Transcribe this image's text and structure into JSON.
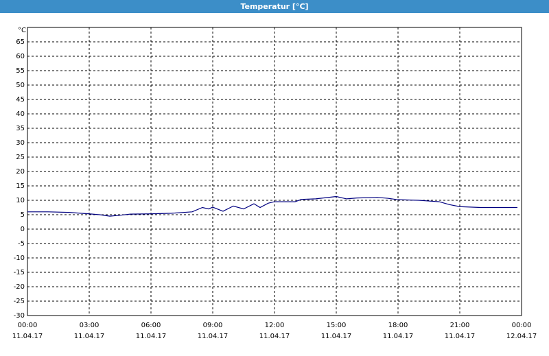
{
  "chart_data": {
    "type": "line",
    "title": "Temperatur [°C]",
    "y_unit": "°C",
    "x": [
      0,
      1,
      2,
      3,
      3.5,
      4,
      4.5,
      5,
      6,
      7,
      8,
      8.5,
      8.8,
      9,
      9.5,
      10,
      10.5,
      11,
      11.3,
      11.7,
      12,
      13,
      13.3,
      14,
      15,
      15.5,
      16,
      17,
      17.5,
      18,
      19,
      20,
      20.5,
      21,
      22,
      23,
      23.8
    ],
    "series": [
      {
        "name": "Temperatur",
        "color": "#000080",
        "values": [
          6,
          6,
          5.8,
          5.3,
          5,
          4.5,
          4.8,
          5.2,
          5.3,
          5.5,
          6,
          7.5,
          7,
          7.6,
          6.2,
          8,
          7,
          8.8,
          7.5,
          9,
          9.5,
          9.5,
          10.3,
          10.5,
          11.3,
          10.5,
          10.8,
          11,
          10.7,
          10.2,
          10,
          9.5,
          8.5,
          7.8,
          7.5,
          7.5,
          7.5
        ]
      }
    ],
    "xlim": [
      0,
      24
    ],
    "xticks": [
      {
        "value": 0,
        "label": "00:00"
      },
      {
        "value": 3,
        "label": "03:00"
      },
      {
        "value": 6,
        "label": "06:00"
      },
      {
        "value": 9,
        "label": "09:00"
      },
      {
        "value": 12,
        "label": "12:00"
      },
      {
        "value": 15,
        "label": "15:00"
      },
      {
        "value": 18,
        "label": "18:00"
      },
      {
        "value": 21,
        "label": "21:00"
      },
      {
        "value": 24,
        "label": "00:00"
      }
    ],
    "xtick_dates": [
      "11.04.17",
      "11.04.17",
      "11.04.17",
      "11.04.17",
      "11.04.17",
      "11.04.17",
      "11.04.17",
      "11.04.17",
      "12.04.17"
    ],
    "ylim": [
      -30,
      70
    ],
    "yticks": [
      -30,
      -25,
      -20,
      -15,
      -10,
      -5,
      0,
      5,
      10,
      15,
      20,
      25,
      30,
      35,
      40,
      45,
      50,
      55,
      60,
      65
    ],
    "grid": true
  }
}
